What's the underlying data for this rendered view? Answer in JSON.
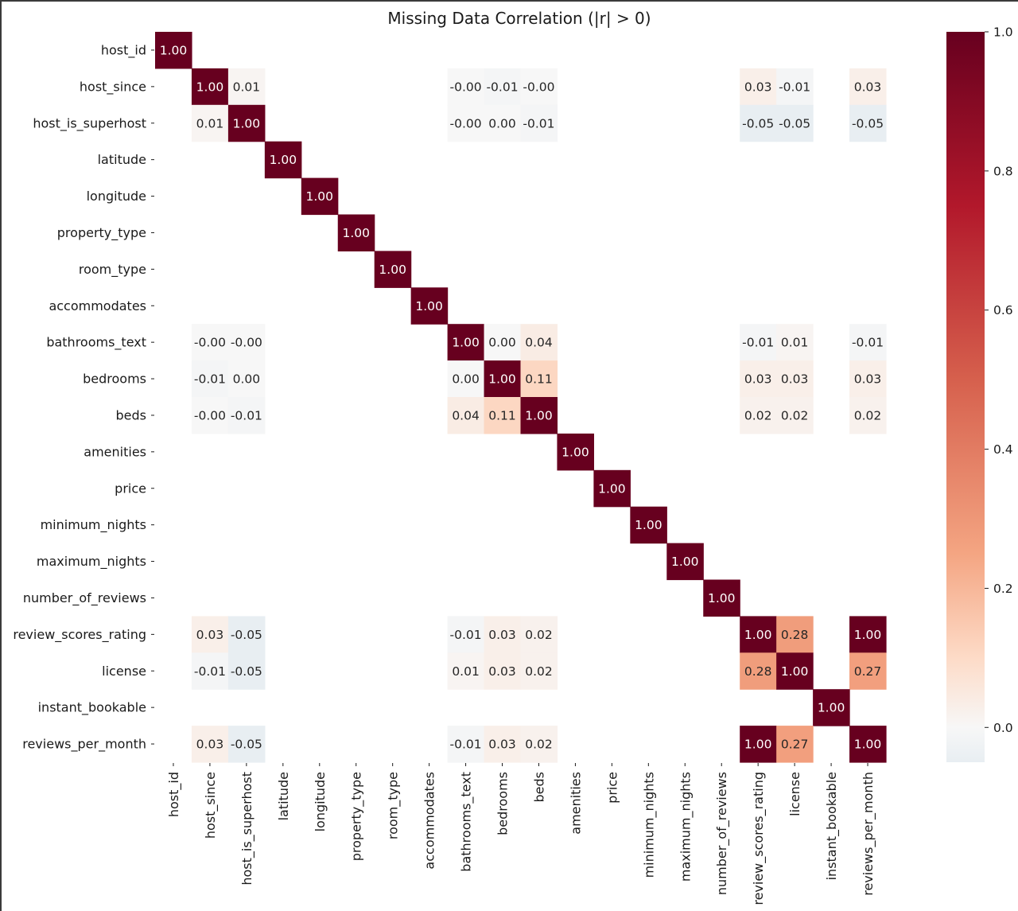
{
  "chart_data": {
    "type": "heatmap",
    "title": "Missing Data Correlation (|r| > 0)",
    "xlabel": "",
    "ylabel": "",
    "labels": [
      "host_id",
      "host_since",
      "host_is_superhost",
      "latitude",
      "longitude",
      "property_type",
      "room_type",
      "accommodates",
      "bathrooms_text",
      "bedrooms",
      "beds",
      "amenities",
      "price",
      "minimum_nights",
      "maximum_nights",
      "number_of_reviews",
      "review_scores_rating",
      "license",
      "instant_bookable",
      "reviews_per_month"
    ],
    "cells": [
      {
        "row": "host_id",
        "col": "host_id",
        "value": 1.0,
        "text": "1.00"
      },
      {
        "row": "host_since",
        "col": "host_since",
        "value": 1.0,
        "text": "1.00"
      },
      {
        "row": "host_since",
        "col": "host_is_superhost",
        "value": 0.01,
        "text": "0.01"
      },
      {
        "row": "host_since",
        "col": "bathrooms_text",
        "value": -0.001,
        "text": "-0.00"
      },
      {
        "row": "host_since",
        "col": "bedrooms",
        "value": -0.01,
        "text": "-0.01"
      },
      {
        "row": "host_since",
        "col": "beds",
        "value": -0.001,
        "text": "-0.00"
      },
      {
        "row": "host_since",
        "col": "review_scores_rating",
        "value": 0.03,
        "text": "0.03"
      },
      {
        "row": "host_since",
        "col": "license",
        "value": -0.01,
        "text": "-0.01"
      },
      {
        "row": "host_since",
        "col": "reviews_per_month",
        "value": 0.03,
        "text": "0.03"
      },
      {
        "row": "host_is_superhost",
        "col": "host_since",
        "value": 0.01,
        "text": "0.01"
      },
      {
        "row": "host_is_superhost",
        "col": "host_is_superhost",
        "value": 1.0,
        "text": "1.00"
      },
      {
        "row": "host_is_superhost",
        "col": "bathrooms_text",
        "value": -0.001,
        "text": "-0.00"
      },
      {
        "row": "host_is_superhost",
        "col": "bedrooms",
        "value": 0.001,
        "text": "0.00"
      },
      {
        "row": "host_is_superhost",
        "col": "beds",
        "value": -0.01,
        "text": "-0.01"
      },
      {
        "row": "host_is_superhost",
        "col": "review_scores_rating",
        "value": -0.05,
        "text": "-0.05"
      },
      {
        "row": "host_is_superhost",
        "col": "license",
        "value": -0.05,
        "text": "-0.05"
      },
      {
        "row": "host_is_superhost",
        "col": "reviews_per_month",
        "value": -0.05,
        "text": "-0.05"
      },
      {
        "row": "latitude",
        "col": "latitude",
        "value": 1.0,
        "text": "1.00"
      },
      {
        "row": "longitude",
        "col": "longitude",
        "value": 1.0,
        "text": "1.00"
      },
      {
        "row": "property_type",
        "col": "property_type",
        "value": 1.0,
        "text": "1.00"
      },
      {
        "row": "room_type",
        "col": "room_type",
        "value": 1.0,
        "text": "1.00"
      },
      {
        "row": "accommodates",
        "col": "accommodates",
        "value": 1.0,
        "text": "1.00"
      },
      {
        "row": "bathrooms_text",
        "col": "host_since",
        "value": -0.001,
        "text": "-0.00"
      },
      {
        "row": "bathrooms_text",
        "col": "host_is_superhost",
        "value": -0.001,
        "text": "-0.00"
      },
      {
        "row": "bathrooms_text",
        "col": "bathrooms_text",
        "value": 1.0,
        "text": "1.00"
      },
      {
        "row": "bathrooms_text",
        "col": "bedrooms",
        "value": 0.001,
        "text": "0.00"
      },
      {
        "row": "bathrooms_text",
        "col": "beds",
        "value": 0.04,
        "text": "0.04"
      },
      {
        "row": "bathrooms_text",
        "col": "review_scores_rating",
        "value": -0.01,
        "text": "-0.01"
      },
      {
        "row": "bathrooms_text",
        "col": "license",
        "value": 0.01,
        "text": "0.01"
      },
      {
        "row": "bathrooms_text",
        "col": "reviews_per_month",
        "value": -0.01,
        "text": "-0.01"
      },
      {
        "row": "bedrooms",
        "col": "host_since",
        "value": -0.01,
        "text": "-0.01"
      },
      {
        "row": "bedrooms",
        "col": "host_is_superhost",
        "value": 0.001,
        "text": "0.00"
      },
      {
        "row": "bedrooms",
        "col": "bathrooms_text",
        "value": 0.001,
        "text": "0.00"
      },
      {
        "row": "bedrooms",
        "col": "bedrooms",
        "value": 1.0,
        "text": "1.00"
      },
      {
        "row": "bedrooms",
        "col": "beds",
        "value": 0.11,
        "text": "0.11"
      },
      {
        "row": "bedrooms",
        "col": "review_scores_rating",
        "value": 0.03,
        "text": "0.03"
      },
      {
        "row": "bedrooms",
        "col": "license",
        "value": 0.03,
        "text": "0.03"
      },
      {
        "row": "bedrooms",
        "col": "reviews_per_month",
        "value": 0.03,
        "text": "0.03"
      },
      {
        "row": "beds",
        "col": "host_since",
        "value": -0.001,
        "text": "-0.00"
      },
      {
        "row": "beds",
        "col": "host_is_superhost",
        "value": -0.01,
        "text": "-0.01"
      },
      {
        "row": "beds",
        "col": "bathrooms_text",
        "value": 0.04,
        "text": "0.04"
      },
      {
        "row": "beds",
        "col": "bedrooms",
        "value": 0.11,
        "text": "0.11"
      },
      {
        "row": "beds",
        "col": "beds",
        "value": 1.0,
        "text": "1.00"
      },
      {
        "row": "beds",
        "col": "review_scores_rating",
        "value": 0.02,
        "text": "0.02"
      },
      {
        "row": "beds",
        "col": "license",
        "value": 0.02,
        "text": "0.02"
      },
      {
        "row": "beds",
        "col": "reviews_per_month",
        "value": 0.02,
        "text": "0.02"
      },
      {
        "row": "amenities",
        "col": "amenities",
        "value": 1.0,
        "text": "1.00"
      },
      {
        "row": "price",
        "col": "price",
        "value": 1.0,
        "text": "1.00"
      },
      {
        "row": "minimum_nights",
        "col": "minimum_nights",
        "value": 1.0,
        "text": "1.00"
      },
      {
        "row": "maximum_nights",
        "col": "maximum_nights",
        "value": 1.0,
        "text": "1.00"
      },
      {
        "row": "number_of_reviews",
        "col": "number_of_reviews",
        "value": 1.0,
        "text": "1.00"
      },
      {
        "row": "review_scores_rating",
        "col": "host_since",
        "value": 0.03,
        "text": "0.03"
      },
      {
        "row": "review_scores_rating",
        "col": "host_is_superhost",
        "value": -0.05,
        "text": "-0.05"
      },
      {
        "row": "review_scores_rating",
        "col": "bathrooms_text",
        "value": -0.01,
        "text": "-0.01"
      },
      {
        "row": "review_scores_rating",
        "col": "bedrooms",
        "value": 0.03,
        "text": "0.03"
      },
      {
        "row": "review_scores_rating",
        "col": "beds",
        "value": 0.02,
        "text": "0.02"
      },
      {
        "row": "review_scores_rating",
        "col": "review_scores_rating",
        "value": 1.0,
        "text": "1.00"
      },
      {
        "row": "review_scores_rating",
        "col": "license",
        "value": 0.28,
        "text": "0.28"
      },
      {
        "row": "review_scores_rating",
        "col": "reviews_per_month",
        "value": 1.0,
        "text": "1.00"
      },
      {
        "row": "license",
        "col": "host_since",
        "value": -0.01,
        "text": "-0.01"
      },
      {
        "row": "license",
        "col": "host_is_superhost",
        "value": -0.05,
        "text": "-0.05"
      },
      {
        "row": "license",
        "col": "bathrooms_text",
        "value": 0.01,
        "text": "0.01"
      },
      {
        "row": "license",
        "col": "bedrooms",
        "value": 0.03,
        "text": "0.03"
      },
      {
        "row": "license",
        "col": "beds",
        "value": 0.02,
        "text": "0.02"
      },
      {
        "row": "license",
        "col": "review_scores_rating",
        "value": 0.28,
        "text": "0.28"
      },
      {
        "row": "license",
        "col": "license",
        "value": 1.0,
        "text": "1.00"
      },
      {
        "row": "license",
        "col": "reviews_per_month",
        "value": 0.27,
        "text": "0.27"
      },
      {
        "row": "instant_bookable",
        "col": "instant_bookable",
        "value": 1.0,
        "text": "1.00"
      },
      {
        "row": "reviews_per_month",
        "col": "host_since",
        "value": 0.03,
        "text": "0.03"
      },
      {
        "row": "reviews_per_month",
        "col": "host_is_superhost",
        "value": -0.05,
        "text": "-0.05"
      },
      {
        "row": "reviews_per_month",
        "col": "bathrooms_text",
        "value": -0.01,
        "text": "-0.01"
      },
      {
        "row": "reviews_per_month",
        "col": "bedrooms",
        "value": 0.03,
        "text": "0.03"
      },
      {
        "row": "reviews_per_month",
        "col": "beds",
        "value": 0.02,
        "text": "0.02"
      },
      {
        "row": "reviews_per_month",
        "col": "review_scores_rating",
        "value": 1.0,
        "text": "1.00"
      },
      {
        "row": "reviews_per_month",
        "col": "license",
        "value": 0.27,
        "text": "0.27"
      },
      {
        "row": "reviews_per_month",
        "col": "reviews_per_month",
        "value": 1.0,
        "text": "1.00"
      }
    ],
    "colorbar": {
      "vmin": -0.05,
      "vmax": 1.0,
      "ticks": [
        0.0,
        0.2,
        0.4,
        0.6,
        0.8,
        1.0
      ],
      "tick_labels": [
        "0.0",
        "0.2",
        "0.4",
        "0.6",
        "0.8",
        "1.0"
      ],
      "placement": "right",
      "colormap": "RdBu_r (positive half)",
      "color_stops": [
        {
          "value": 0.0,
          "color": "#f7f7f7"
        },
        {
          "value": 0.1,
          "color": "#fddbc7"
        },
        {
          "value": 0.25,
          "color": "#f4a582"
        },
        {
          "value": 0.5,
          "color": "#d6604d"
        },
        {
          "value": 0.75,
          "color": "#b2182b"
        },
        {
          "value": 1.0,
          "color": "#67001f"
        }
      ],
      "negative_color": "#e8eef2"
    },
    "grid": false,
    "missing_cells": "blank"
  }
}
